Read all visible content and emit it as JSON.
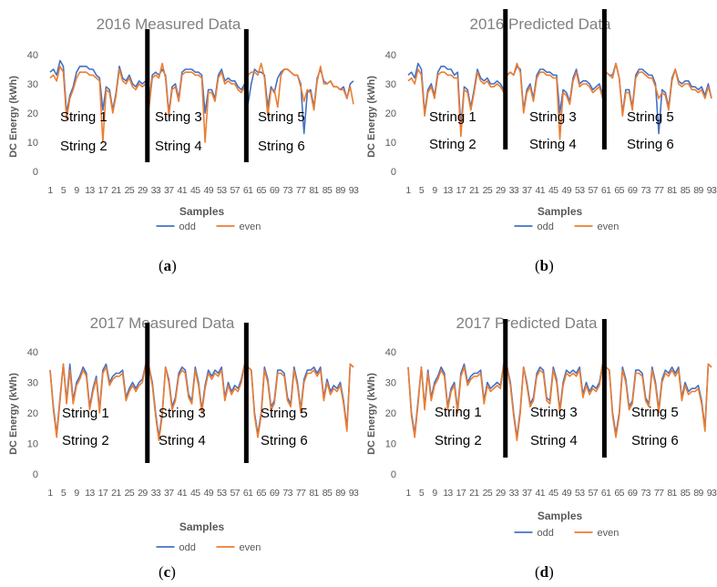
{
  "colors": {
    "odd": "#4472c4",
    "even": "#ed7d31",
    "divider": "#000000",
    "axis_text": "#595959",
    "title": "#808080",
    "grid": "#d9d9d9"
  },
  "chart_data": [
    {
      "type": "line",
      "title": "2016 Measured Data",
      "caption": "a",
      "xlabel": "Samples",
      "ylabel": "DC Energy (kWh)",
      "ylim": [
        0,
        40
      ],
      "yticks": [
        "0",
        "10",
        "20",
        "30",
        "40"
      ],
      "xticks": [
        "1",
        "5",
        "9",
        "13",
        "17",
        "21",
        "25",
        "29",
        "33",
        "37",
        "41",
        "45",
        "49",
        "53",
        "57",
        "61",
        "65",
        "69",
        "73",
        "77",
        "81",
        "85",
        "89",
        "93"
      ],
      "legend": [
        "odd",
        "even"
      ],
      "legend_position": "bottom",
      "region_labels": [
        [
          "String 1",
          "String 2"
        ],
        [
          "String 3",
          "String 4"
        ],
        [
          "String 5",
          "String 6"
        ]
      ],
      "dividers_after_sample": [
        30,
        60
      ],
      "series": [
        {
          "name": "odd",
          "values": [
            34,
            35,
            33,
            38,
            36,
            20,
            26,
            29,
            34,
            36,
            36,
            36,
            35,
            35,
            33,
            32,
            21,
            29,
            28,
            21,
            27,
            36,
            32,
            31,
            33,
            30,
            29,
            31,
            30,
            31,
            24,
            33,
            34,
            33,
            35,
            33,
            20,
            29,
            30,
            25,
            34,
            35,
            35,
            35,
            34,
            34,
            33,
            20,
            28,
            28,
            25,
            33,
            35,
            31,
            32,
            31,
            31,
            29,
            28,
            30,
            23,
            30,
            35,
            34,
            34,
            33,
            22,
            29,
            27,
            32,
            34,
            35,
            35,
            34,
            33,
            33,
            30,
            13,
            27,
            28,
            22,
            32,
            35,
            31,
            30,
            31,
            29,
            29,
            28,
            29,
            25,
            30,
            31
          ]
        },
        {
          "name": "even",
          "values": [
            32,
            33,
            31,
            36,
            34,
            18,
            25,
            28,
            32,
            34,
            34,
            34,
            33,
            33,
            32,
            31,
            10,
            28,
            27,
            20,
            26,
            35,
            31,
            30,
            32,
            29,
            28,
            30,
            29,
            30,
            22,
            32,
            33,
            32,
            37,
            32,
            19,
            28,
            29,
            24,
            33,
            34,
            34,
            34,
            33,
            33,
            32,
            10,
            27,
            27,
            24,
            32,
            34,
            30,
            31,
            30,
            30,
            28,
            27,
            29,
            33,
            34,
            34,
            33,
            37,
            32,
            19,
            28,
            28,
            22,
            33,
            35,
            35,
            34,
            33,
            33,
            29,
            24,
            28,
            27,
            21,
            31,
            36,
            30,
            30,
            31,
            29,
            29,
            28,
            28,
            25,
            29,
            23
          ]
        }
      ]
    },
    {
      "type": "line",
      "title": "2016 Predicted Data",
      "caption": "b",
      "xlabel": "Samples",
      "ylabel": "DC Energy (kWh)",
      "ylim": [
        0,
        40
      ],
      "yticks": [
        "0",
        "10",
        "20",
        "30",
        "40"
      ],
      "xticks": [
        "1",
        "5",
        "9",
        "13",
        "17",
        "21",
        "25",
        "29",
        "33",
        "37",
        "41",
        "45",
        "49",
        "53",
        "57",
        "61",
        "65",
        "69",
        "73",
        "77",
        "81",
        "85",
        "89",
        "93"
      ],
      "legend": [
        "odd",
        "even"
      ],
      "legend_position": "bottom",
      "region_labels": [
        [
          "String 1",
          "String 2"
        ],
        [
          "String 3",
          "String 4"
        ],
        [
          "String 5",
          "String 6"
        ]
      ],
      "dividers_after_sample": [
        30,
        60
      ],
      "series": [
        {
          "name": "odd",
          "values": [
            33,
            34,
            32,
            37,
            35,
            20,
            28,
            30,
            26,
            34,
            36,
            36,
            35,
            35,
            33,
            34,
            15,
            29,
            28,
            22,
            28,
            35,
            32,
            31,
            32,
            30,
            30,
            31,
            30,
            28,
            33,
            34,
            33,
            36,
            35,
            21,
            28,
            30,
            25,
            33,
            35,
            35,
            34,
            34,
            33,
            33,
            20,
            28,
            27,
            24,
            32,
            35,
            30,
            31,
            31,
            30,
            28,
            29,
            30,
            26,
            34,
            33,
            33,
            37,
            32,
            20,
            28,
            28,
            22,
            33,
            35,
            35,
            34,
            33,
            33,
            30,
            13,
            28,
            27,
            22,
            32,
            35,
            31,
            30,
            31,
            31,
            29,
            29,
            28,
            29,
            26,
            30,
            25
          ]
        },
        {
          "name": "even",
          "values": [
            31,
            32,
            30,
            35,
            33,
            19,
            27,
            29,
            25,
            33,
            34,
            34,
            33,
            33,
            32,
            32,
            12,
            28,
            27,
            21,
            27,
            34,
            31,
            30,
            31,
            29,
            29,
            30,
            29,
            27,
            33,
            34,
            33,
            37,
            34,
            20,
            27,
            29,
            24,
            32,
            34,
            34,
            33,
            33,
            32,
            32,
            11,
            27,
            26,
            23,
            31,
            34,
            29,
            30,
            30,
            29,
            27,
            28,
            29,
            25,
            34,
            33,
            32,
            37,
            32,
            19,
            27,
            27,
            21,
            32,
            34,
            34,
            33,
            32,
            32,
            29,
            25,
            27,
            26,
            21,
            31,
            35,
            30,
            29,
            30,
            30,
            28,
            28,
            27,
            28,
            25,
            29,
            25
          ]
        }
      ]
    },
    {
      "type": "line",
      "title": "2017 Measured Data",
      "caption": "c",
      "xlabel": "Samples",
      "ylabel": "DC Energy (kWh)",
      "ylim": [
        0,
        40
      ],
      "yticks": [
        "0",
        "10",
        "20",
        "30",
        "40"
      ],
      "xticks": [
        "1",
        "5",
        "9",
        "13",
        "17",
        "21",
        "25",
        "29",
        "33",
        "37",
        "41",
        "45",
        "49",
        "53",
        "57",
        "61",
        "65",
        "69",
        "73",
        "77",
        "81",
        "85",
        "89",
        "93"
      ],
      "legend": [
        "odd",
        "even"
      ],
      "legend_position": "bottom",
      "region_labels": [
        [
          "String 1",
          "String 2"
        ],
        [
          "String 3",
          "String 4"
        ],
        [
          "String 5",
          "String 6"
        ]
      ],
      "dividers_after_sample": [
        30,
        60
      ],
      "series": [
        {
          "name": "odd",
          "values": [
            34,
            22,
            13,
            25,
            36,
            24,
            36,
            24,
            30,
            32,
            35,
            33,
            22,
            28,
            32,
            21,
            34,
            36,
            30,
            32,
            33,
            33,
            34,
            25,
            28,
            30,
            28,
            30,
            31,
            36,
            35,
            30,
            20,
            12,
            20,
            35,
            31,
            22,
            25,
            33,
            35,
            34,
            26,
            24,
            35,
            30,
            21,
            29,
            34,
            32,
            34,
            33,
            35,
            25,
            30,
            27,
            29,
            28,
            31,
            36,
            35,
            34,
            20,
            13,
            20,
            35,
            31,
            22,
            24,
            34,
            34,
            33,
            25,
            23,
            35,
            30,
            21,
            31,
            34,
            34,
            35,
            33,
            35,
            25,
            31,
            27,
            29,
            28,
            30,
            24,
            15,
            36,
            35
          ]
        },
        {
          "name": "even",
          "values": [
            34,
            21,
            12,
            24,
            36,
            23,
            34,
            23,
            29,
            31,
            34,
            32,
            21,
            27,
            31,
            20,
            33,
            35,
            29,
            31,
            32,
            32,
            33,
            24,
            27,
            29,
            27,
            29,
            30,
            36,
            35,
            29,
            19,
            11,
            19,
            35,
            30,
            21,
            24,
            32,
            34,
            33,
            25,
            23,
            34,
            29,
            20,
            28,
            33,
            31,
            33,
            32,
            34,
            24,
            29,
            26,
            28,
            27,
            30,
            36,
            35,
            34,
            19,
            12,
            19,
            34,
            30,
            21,
            23,
            33,
            33,
            32,
            24,
            22,
            34,
            29,
            20,
            30,
            33,
            33,
            34,
            32,
            34,
            24,
            30,
            26,
            28,
            27,
            29,
            23,
            14,
            36,
            35
          ]
        }
      ]
    },
    {
      "type": "line",
      "title": "2017 Predicted Data",
      "caption": "d",
      "xlabel": "Samples",
      "ylabel": "DC Energy (kWh)",
      "ylim": [
        0,
        40
      ],
      "yticks": [
        "0",
        "10",
        "20",
        "30",
        "40"
      ],
      "xticks": [
        "1",
        "5",
        "9",
        "13",
        "17",
        "21",
        "25",
        "29",
        "33",
        "37",
        "41",
        "45",
        "49",
        "53",
        "57",
        "61",
        "65",
        "69",
        "73",
        "77",
        "81",
        "85",
        "89",
        "93"
      ],
      "legend": [
        "odd",
        "even"
      ],
      "legend_position": "bottom",
      "region_labels": [
        [
          "String 1",
          "String 2"
        ],
        [
          "String 3",
          "String 4"
        ],
        [
          "String 5",
          "String 6"
        ]
      ],
      "dividers_after_sample": [
        30,
        60
      ],
      "series": [
        {
          "name": "odd",
          "values": [
            35,
            20,
            13,
            24,
            35,
            22,
            34,
            25,
            30,
            32,
            35,
            33,
            22,
            28,
            30,
            21,
            33,
            36,
            30,
            32,
            33,
            33,
            34,
            24,
            30,
            28,
            29,
            30,
            29,
            36,
            35,
            30,
            20,
            12,
            21,
            35,
            30,
            23,
            25,
            33,
            35,
            34,
            25,
            24,
            35,
            31,
            21,
            30,
            34,
            33,
            34,
            33,
            35,
            26,
            30,
            27,
            29,
            28,
            30,
            36,
            35,
            34,
            20,
            13,
            20,
            35,
            31,
            22,
            24,
            34,
            34,
            33,
            25,
            23,
            35,
            30,
            21,
            31,
            34,
            33,
            35,
            33,
            35,
            25,
            30,
            27,
            28,
            28,
            29,
            24,
            15,
            36,
            35
          ]
        },
        {
          "name": "even",
          "values": [
            35,
            19,
            12,
            23,
            35,
            21,
            33,
            24,
            29,
            31,
            34,
            32,
            21,
            27,
            29,
            20,
            32,
            35,
            29,
            31,
            32,
            32,
            33,
            23,
            29,
            27,
            28,
            29,
            28,
            36,
            35,
            29,
            19,
            11,
            20,
            35,
            29,
            22,
            24,
            32,
            34,
            33,
            24,
            23,
            34,
            30,
            20,
            29,
            33,
            32,
            33,
            32,
            34,
            25,
            29,
            26,
            28,
            27,
            29,
            36,
            35,
            34,
            19,
            12,
            19,
            34,
            30,
            21,
            23,
            33,
            33,
            32,
            24,
            22,
            34,
            29,
            20,
            30,
            33,
            32,
            34,
            32,
            34,
            24,
            29,
            26,
            27,
            27,
            28,
            23,
            14,
            36,
            35
          ]
        }
      ]
    }
  ]
}
